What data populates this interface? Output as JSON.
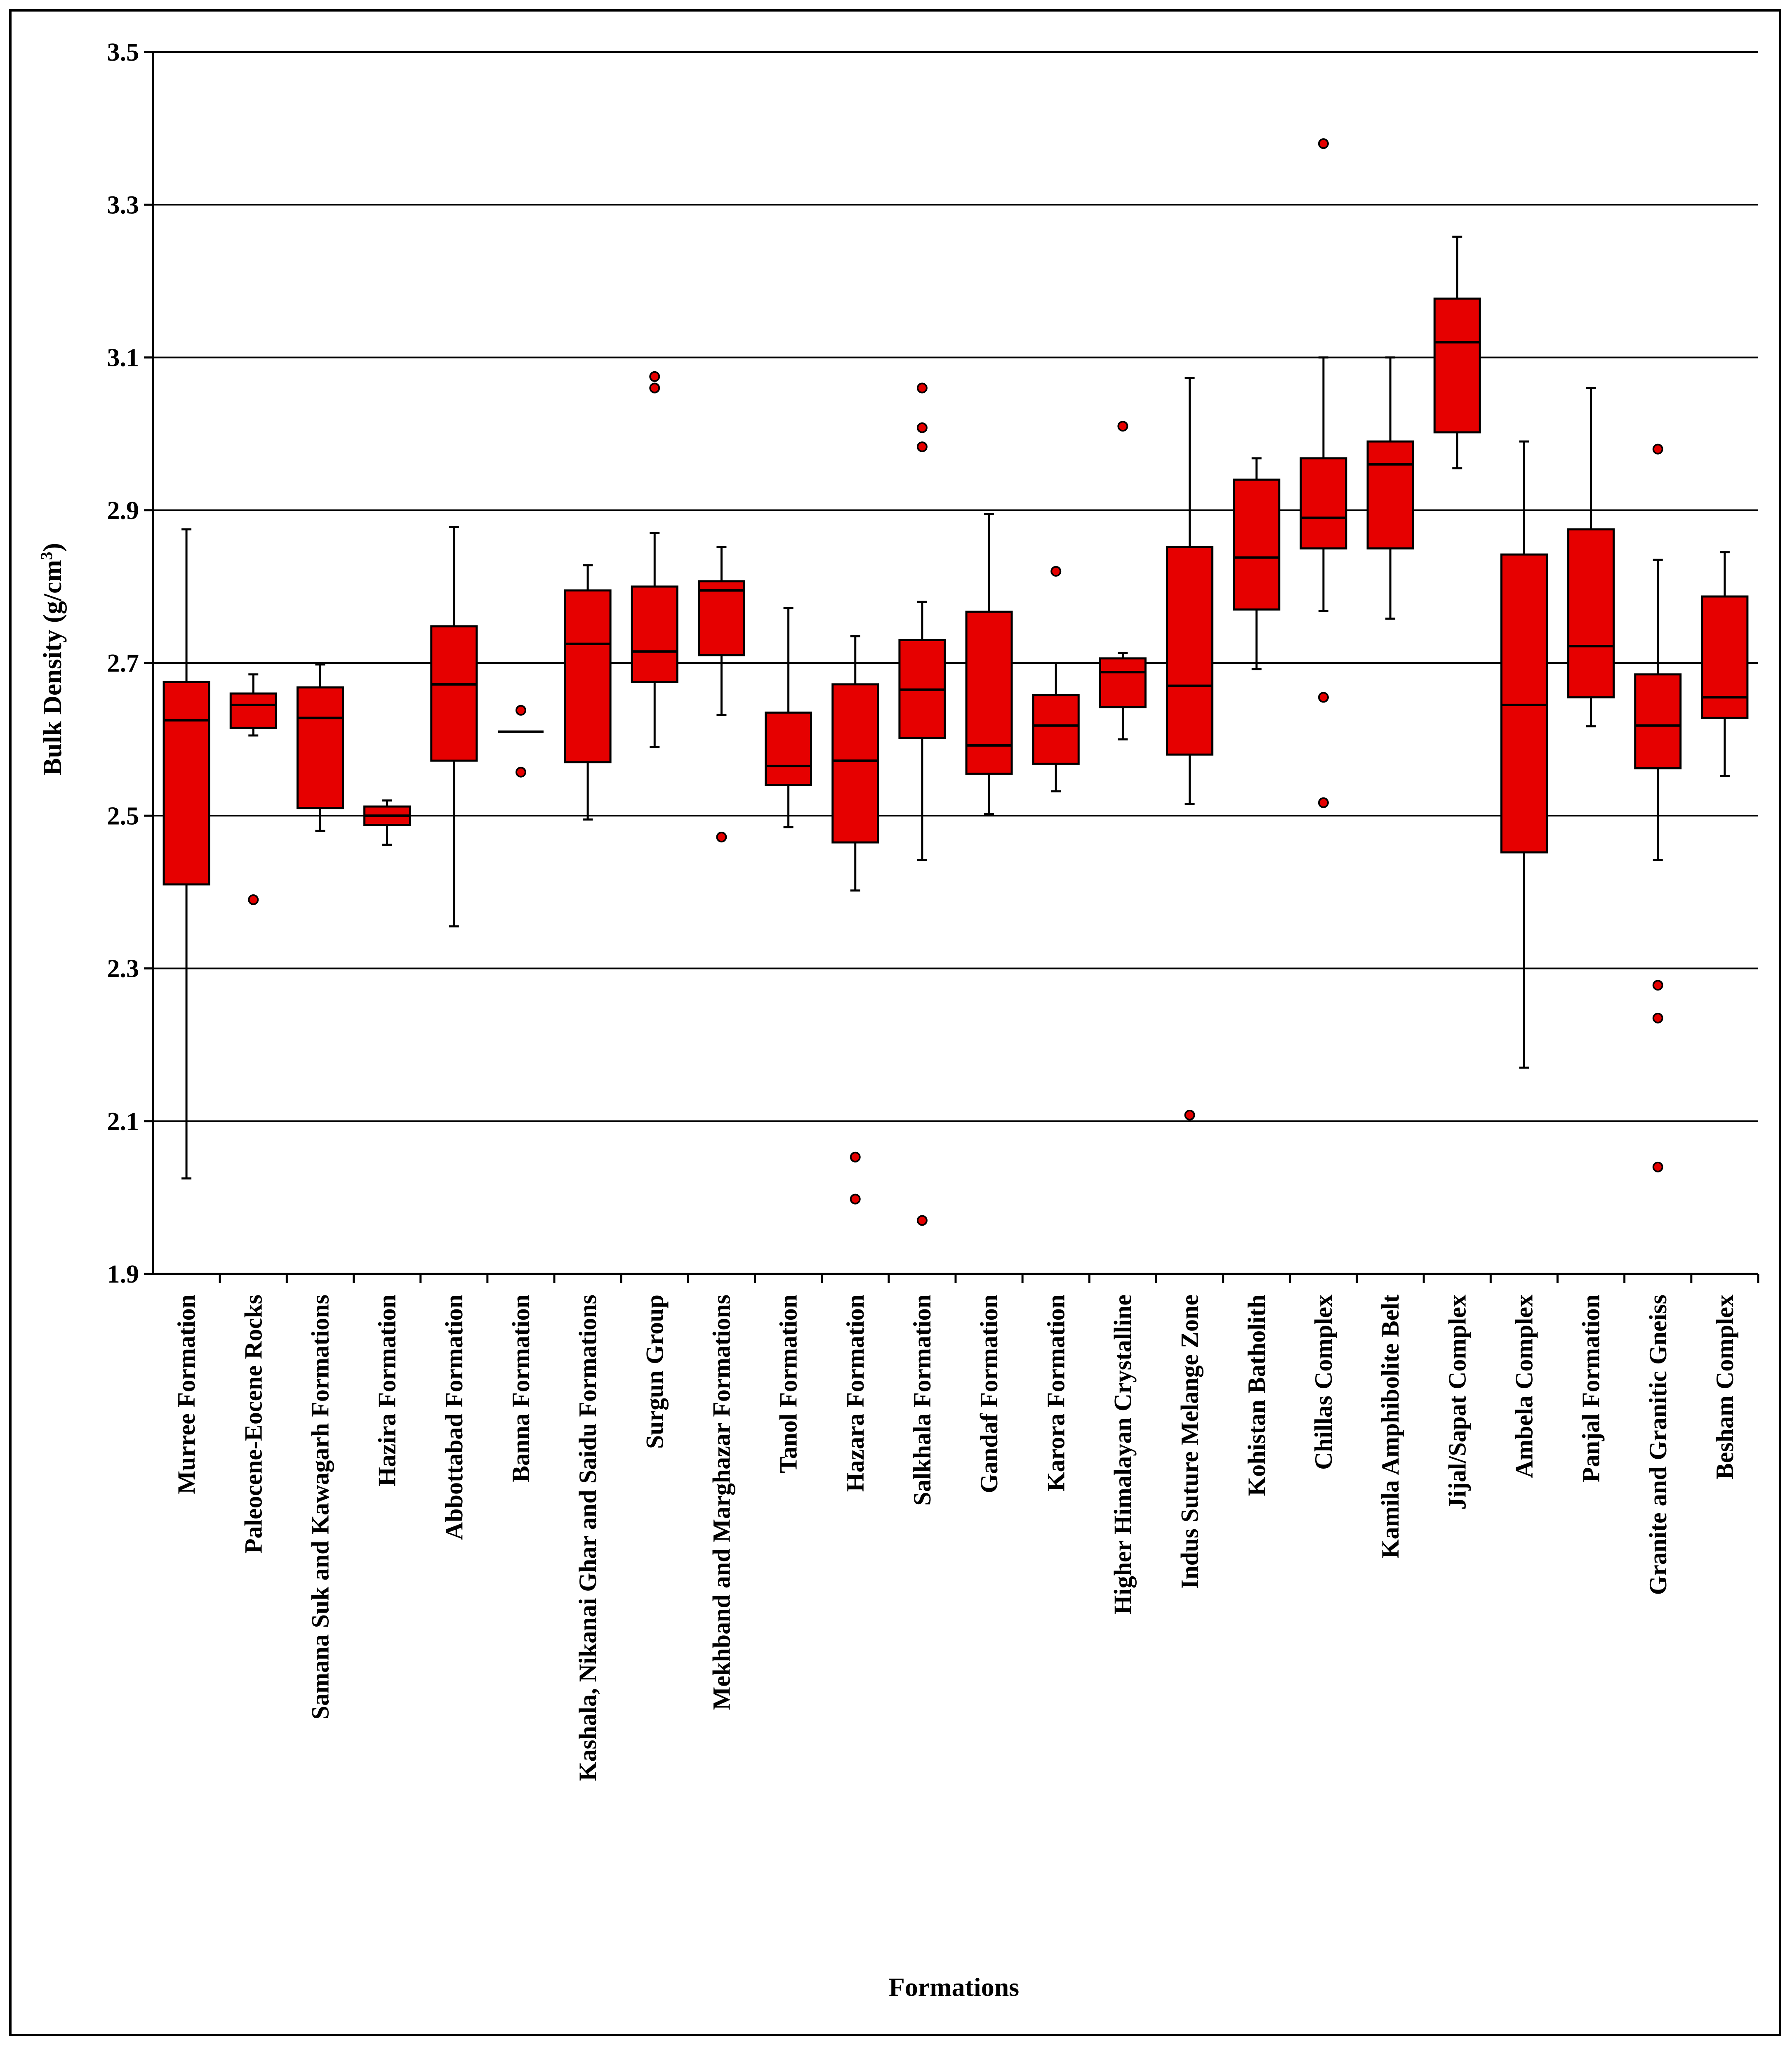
{
  "chart_data": {
    "type": "boxplot",
    "title": "",
    "xlabel": "Formations",
    "ylabel": "Bulk Density (g/cm3)",
    "ylabel_main": "Bulk Density (g/cm",
    "ylabel_sup": "3",
    "ylabel_close": ")",
    "ylim": [
      1.9,
      3.5
    ],
    "yticks": [
      "1.9",
      "2.1",
      "2.3",
      "2.5",
      "2.7",
      "2.9",
      "3.1",
      "3.3",
      "3.5"
    ],
    "grid": true,
    "colors": {
      "box": "#e60000",
      "outline": "#000000",
      "grid": "#000000"
    },
    "categories": [
      "Murree Formation",
      "Paleocene-Eocene Rocks",
      "Samana Suk and Kawagarh Formations",
      "Hazira Formation",
      "Abbottabad Formation",
      "Banna Formation",
      "Kashala, Nikanai Ghar and Saidu Formations",
      "Surgun Group",
      "Mekhband and Marghazar Formations",
      "Tanol Formation",
      "Hazara Formation",
      "Salkhala Formation",
      "Gandaf Formation",
      "Karora Formation",
      "Higher Himalayan Crystalline",
      "Indus Suture Melange Zone",
      "Kohistan Batholith",
      "Chillas Complex",
      "Kamila Amphibolite Belt",
      "Jijal/Sapat Complex",
      "Ambela Complex",
      "Panjal Formation",
      "Granite and Granitic Gneiss",
      "Besham Complex"
    ],
    "boxes": [
      {
        "min": 2.025,
        "q1": 2.41,
        "median": 2.625,
        "q3": 2.675,
        "max": 2.875,
        "outliers": []
      },
      {
        "min": 2.605,
        "q1": 2.615,
        "median": 2.645,
        "q3": 2.66,
        "max": 2.685,
        "outliers": [
          2.39
        ]
      },
      {
        "min": 2.48,
        "q1": 2.51,
        "median": 2.628,
        "q3": 2.668,
        "max": 2.698,
        "outliers": []
      },
      {
        "min": 2.462,
        "q1": 2.488,
        "median": 2.5,
        "q3": 2.512,
        "max": 2.52,
        "outliers": []
      },
      {
        "min": 2.355,
        "q1": 2.572,
        "median": 2.672,
        "q3": 2.748,
        "max": 2.878,
        "outliers": []
      },
      {
        "min": 2.61,
        "q1": 2.61,
        "median": 2.61,
        "q3": 2.61,
        "max": 2.61,
        "outliers": [
          2.638,
          2.557
        ]
      },
      {
        "min": 2.495,
        "q1": 2.57,
        "median": 2.725,
        "q3": 2.795,
        "max": 2.828,
        "outliers": []
      },
      {
        "min": 2.59,
        "q1": 2.675,
        "median": 2.715,
        "q3": 2.8,
        "max": 2.87,
        "outliers": [
          3.075,
          3.06
        ]
      },
      {
        "min": 2.632,
        "q1": 2.71,
        "median": 2.795,
        "q3": 2.807,
        "max": 2.852,
        "outliers": [
          2.472
        ]
      },
      {
        "min": 2.485,
        "q1": 2.54,
        "median": 2.565,
        "q3": 2.635,
        "max": 2.772,
        "outliers": []
      },
      {
        "min": 2.402,
        "q1": 2.465,
        "median": 2.572,
        "q3": 2.672,
        "max": 2.735,
        "outliers": [
          2.053,
          1.998
        ]
      },
      {
        "min": 2.442,
        "q1": 2.602,
        "median": 2.665,
        "q3": 2.73,
        "max": 2.78,
        "outliers": [
          3.06,
          3.008,
          2.983,
          1.97
        ]
      },
      {
        "min": 2.502,
        "q1": 2.555,
        "median": 2.592,
        "q3": 2.767,
        "max": 2.895,
        "outliers": []
      },
      {
        "min": 2.532,
        "q1": 2.568,
        "median": 2.618,
        "q3": 2.658,
        "max": 2.7,
        "outliers": [
          2.82
        ]
      },
      {
        "min": 2.6,
        "q1": 2.642,
        "median": 2.688,
        "q3": 2.706,
        "max": 2.713,
        "outliers": [
          3.01
        ]
      },
      {
        "min": 2.515,
        "q1": 2.58,
        "median": 2.67,
        "q3": 2.852,
        "max": 3.073,
        "outliers": [
          2.108
        ]
      },
      {
        "min": 2.692,
        "q1": 2.77,
        "median": 2.838,
        "q3": 2.94,
        "max": 2.968,
        "outliers": []
      },
      {
        "min": 2.768,
        "q1": 2.85,
        "median": 2.89,
        "q3": 2.968,
        "max": 3.1,
        "outliers": [
          3.38,
          2.655,
          2.517
        ]
      },
      {
        "min": 2.758,
        "q1": 2.85,
        "median": 2.96,
        "q3": 2.99,
        "max": 3.1,
        "outliers": []
      },
      {
        "min": 2.955,
        "q1": 3.002,
        "median": 3.12,
        "q3": 3.177,
        "max": 3.258,
        "outliers": []
      },
      {
        "min": 2.17,
        "q1": 2.452,
        "median": 2.645,
        "q3": 2.842,
        "max": 2.99,
        "outliers": []
      },
      {
        "min": 2.617,
        "q1": 2.655,
        "median": 2.722,
        "q3": 2.875,
        "max": 3.06,
        "outliers": []
      },
      {
        "min": 2.442,
        "q1": 2.562,
        "median": 2.618,
        "q3": 2.685,
        "max": 2.835,
        "outliers": [
          2.98,
          2.278,
          2.235,
          2.04
        ]
      },
      {
        "min": 2.552,
        "q1": 2.628,
        "median": 2.655,
        "q3": 2.787,
        "max": 2.845,
        "outliers": []
      }
    ]
  }
}
